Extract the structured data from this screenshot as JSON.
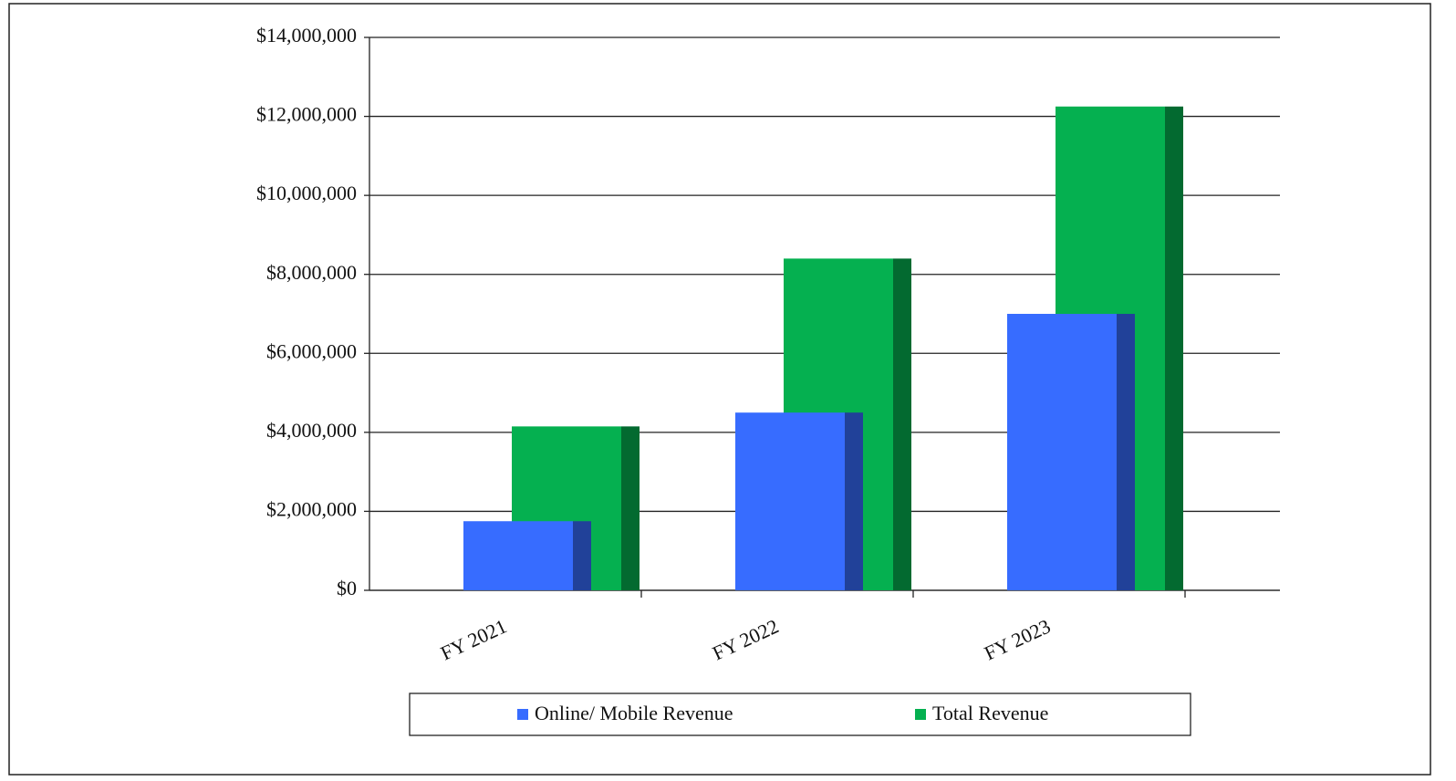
{
  "chart_data": {
    "type": "bar",
    "categories": [
      "FY 2021",
      "FY 2022",
      "FY 2023"
    ],
    "series": [
      {
        "name": "Online/ Mobile Revenue",
        "color": "#376cff",
        "values": [
          1750000,
          4500000,
          7000000
        ]
      },
      {
        "name": "Total Revenue",
        "color": "#05b050",
        "values": [
          4150000,
          8400000,
          12250000
        ]
      }
    ],
    "ylim": [
      0,
      14000000
    ],
    "yticks": [
      {
        "value": 0,
        "label": "$0"
      },
      {
        "value": 2000000,
        "label": "$2,000,000"
      },
      {
        "value": 4000000,
        "label": "$4,000,000"
      },
      {
        "value": 6000000,
        "label": "$6,000,000"
      },
      {
        "value": 8000000,
        "label": "$8,000,000"
      },
      {
        "value": 10000000,
        "label": "$10,000,000"
      },
      {
        "value": 12000000,
        "label": "$12,000,000"
      },
      {
        "value": 14000000,
        "label": "$14,000,000"
      }
    ],
    "grid": true,
    "legend": "bottom"
  }
}
